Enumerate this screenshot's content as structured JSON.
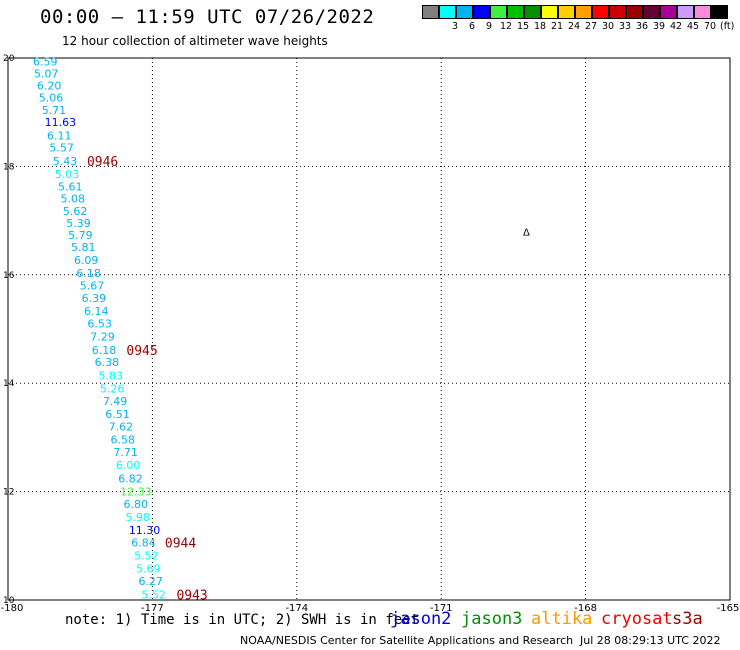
{
  "header": {
    "title": "00:00 – 11:59 UTC 07/26/2022",
    "subtitle": "12 hour collection of altimeter wave heights"
  },
  "colorscale": {
    "unit": "(ft)",
    "bins": [
      {
        "color": "#808080",
        "label": ""
      },
      {
        "color": "#00ffff",
        "label": "3"
      },
      {
        "color": "#00b4f0",
        "label": "6"
      },
      {
        "color": "#0000ff",
        "label": "9"
      },
      {
        "color": "#40f040",
        "label": "12"
      },
      {
        "color": "#00c000",
        "label": "15"
      },
      {
        "color": "#009000",
        "label": "18"
      },
      {
        "color": "#ffff00",
        "label": "21"
      },
      {
        "color": "#ffd000",
        "label": "24"
      },
      {
        "color": "#ffa000",
        "label": "27"
      },
      {
        "color": "#ff0000",
        "label": "30"
      },
      {
        "color": "#cc0000",
        "label": "33"
      },
      {
        "color": "#990000",
        "label": "36"
      },
      {
        "color": "#660033",
        "label": "39"
      },
      {
        "color": "#aa0099",
        "label": "42"
      },
      {
        "color": "#cc99ff",
        "label": "45"
      },
      {
        "color": "#ff88dd",
        "label": "70"
      },
      {
        "color": "#000000",
        "label": ""
      }
    ]
  },
  "chart_data": {
    "type": "scatter",
    "xlim": [
      -180,
      -165
    ],
    "ylim": [
      10,
      20
    ],
    "x_ticks": [
      "-180",
      "-177",
      "-174",
      "-171",
      "-168",
      "-165"
    ],
    "y_ticks": [
      "20",
      "18",
      "16",
      "14",
      "12",
      "10"
    ],
    "grid": true,
    "points": [
      {
        "lon": -179.48,
        "lat": 19.94,
        "swh": "6.59",
        "color": "#00b4f0"
      },
      {
        "lon": -179.46,
        "lat": 19.71,
        "swh": "5.07",
        "color": "#00b4f0"
      },
      {
        "lon": -179.4,
        "lat": 19.49,
        "swh": "6.20",
        "color": "#00b4f0"
      },
      {
        "lon": -179.36,
        "lat": 19.27,
        "swh": "5.06",
        "color": "#00b4f0"
      },
      {
        "lon": -179.3,
        "lat": 19.04,
        "swh": "5.71",
        "color": "#00b4f0"
      },
      {
        "lon": -179.24,
        "lat": 18.82,
        "swh": "11.63",
        "color": "#0000ff"
      },
      {
        "lon": -179.19,
        "lat": 18.57,
        "swh": "6.11",
        "color": "#00b4f0"
      },
      {
        "lon": -179.14,
        "lat": 18.35,
        "swh": "5.57",
        "color": "#00b4f0"
      },
      {
        "lon": -179.07,
        "lat": 18.1,
        "swh": "5.43",
        "color": "#00b4f0"
      },
      {
        "lon": -179.03,
        "lat": 17.86,
        "swh": "5.03",
        "color": "#00ffff"
      },
      {
        "lon": -178.96,
        "lat": 17.63,
        "swh": "5.61",
        "color": "#00b4f0"
      },
      {
        "lon": -178.91,
        "lat": 17.41,
        "swh": "5.08",
        "color": "#00b4f0"
      },
      {
        "lon": -178.86,
        "lat": 17.18,
        "swh": "5.62",
        "color": "#00b4f0"
      },
      {
        "lon": -178.79,
        "lat": 16.96,
        "swh": "5.39",
        "color": "#00b4f0"
      },
      {
        "lon": -178.75,
        "lat": 16.73,
        "swh": "5.79",
        "color": "#00b4f0"
      },
      {
        "lon": -178.69,
        "lat": 16.51,
        "swh": "5.81",
        "color": "#00b4f0"
      },
      {
        "lon": -178.63,
        "lat": 16.27,
        "swh": "6.09",
        "color": "#00b4f0"
      },
      {
        "lon": -178.58,
        "lat": 16.03,
        "swh": "6.18",
        "color": "#00b4f0"
      },
      {
        "lon": -178.51,
        "lat": 15.8,
        "swh": "5.67",
        "color": "#00b4f0"
      },
      {
        "lon": -178.47,
        "lat": 15.57,
        "swh": "6.39",
        "color": "#00b4f0"
      },
      {
        "lon": -178.42,
        "lat": 15.33,
        "swh": "6.14",
        "color": "#00b4f0"
      },
      {
        "lon": -178.35,
        "lat": 15.1,
        "swh": "6.53",
        "color": "#00b4f0"
      },
      {
        "lon": -178.29,
        "lat": 14.86,
        "swh": "7.29",
        "color": "#00b4f0"
      },
      {
        "lon": -178.26,
        "lat": 14.61,
        "swh": "6.18",
        "color": "#00b4f0"
      },
      {
        "lon": -178.2,
        "lat": 14.39,
        "swh": "6.38",
        "color": "#00b4f0"
      },
      {
        "lon": -178.12,
        "lat": 14.14,
        "swh": "5.83",
        "color": "#00ffff"
      },
      {
        "lon": -178.09,
        "lat": 13.9,
        "swh": "5.26",
        "color": "#00ffff"
      },
      {
        "lon": -178.03,
        "lat": 13.67,
        "swh": "7.49",
        "color": "#00b4f0"
      },
      {
        "lon": -177.98,
        "lat": 13.43,
        "swh": "6.51",
        "color": "#00b4f0"
      },
      {
        "lon": -177.91,
        "lat": 13.2,
        "swh": "7.62",
        "color": "#00b4f0"
      },
      {
        "lon": -177.87,
        "lat": 12.96,
        "swh": "6.58",
        "color": "#00b4f0"
      },
      {
        "lon": -177.81,
        "lat": 12.73,
        "swh": "7.71",
        "color": "#00b4f0"
      },
      {
        "lon": -177.76,
        "lat": 12.49,
        "swh": "6.00",
        "color": "#00ffff"
      },
      {
        "lon": -177.71,
        "lat": 12.24,
        "swh": "6.82",
        "color": "#00b4f0"
      },
      {
        "lon": -177.67,
        "lat": 12.0,
        "swh": "12.33",
        "color": "#40f040"
      },
      {
        "lon": -177.6,
        "lat": 11.77,
        "swh": "6.80",
        "color": "#00b4f0"
      },
      {
        "lon": -177.56,
        "lat": 11.53,
        "swh": "5.98",
        "color": "#00ffff"
      },
      {
        "lon": -177.49,
        "lat": 11.29,
        "swh": "11.30",
        "color": "#0000ff"
      },
      {
        "lon": -177.44,
        "lat": 11.06,
        "swh": "6.84",
        "color": "#00b4f0"
      },
      {
        "lon": -177.38,
        "lat": 10.82,
        "swh": "5.52",
        "color": "#00ffff"
      },
      {
        "lon": -177.34,
        "lat": 10.58,
        "swh": "5.69",
        "color": "#00ffff"
      },
      {
        "lon": -177.29,
        "lat": 10.35,
        "swh": "6.27",
        "color": "#00b4f0"
      },
      {
        "lon": -177.23,
        "lat": 10.1,
        "swh": "5.52",
        "color": "#00ffff"
      }
    ],
    "time_labels": [
      {
        "lon": -178.36,
        "lat": 18.1,
        "text": "0946"
      },
      {
        "lon": -177.54,
        "lat": 14.61,
        "text": "0945"
      },
      {
        "lon": -176.74,
        "lat": 11.06,
        "text": "0944"
      },
      {
        "lon": -176.5,
        "lat": 10.1,
        "text": "0943"
      }
    ],
    "marker": {
      "lon": -169.3,
      "lat": 16.8,
      "text": "Δ"
    }
  },
  "footer": {
    "note": "note: 1) Time is in UTC; 2) SWH is in feet",
    "legend": [
      {
        "name": "jason2",
        "color": "#0000dd"
      },
      {
        "name": "jason3",
        "color": "#009000"
      },
      {
        "name": "altika",
        "color": "#ff9900"
      },
      {
        "name": "cryosat",
        "color": "#ee0000"
      },
      {
        "name": "s3a",
        "color": "#990000"
      }
    ],
    "credit": "NOAA/NESDIS Center for Satellite Applications and Research",
    "generated": "Jul 28 08:29:13 UTC 2022"
  }
}
